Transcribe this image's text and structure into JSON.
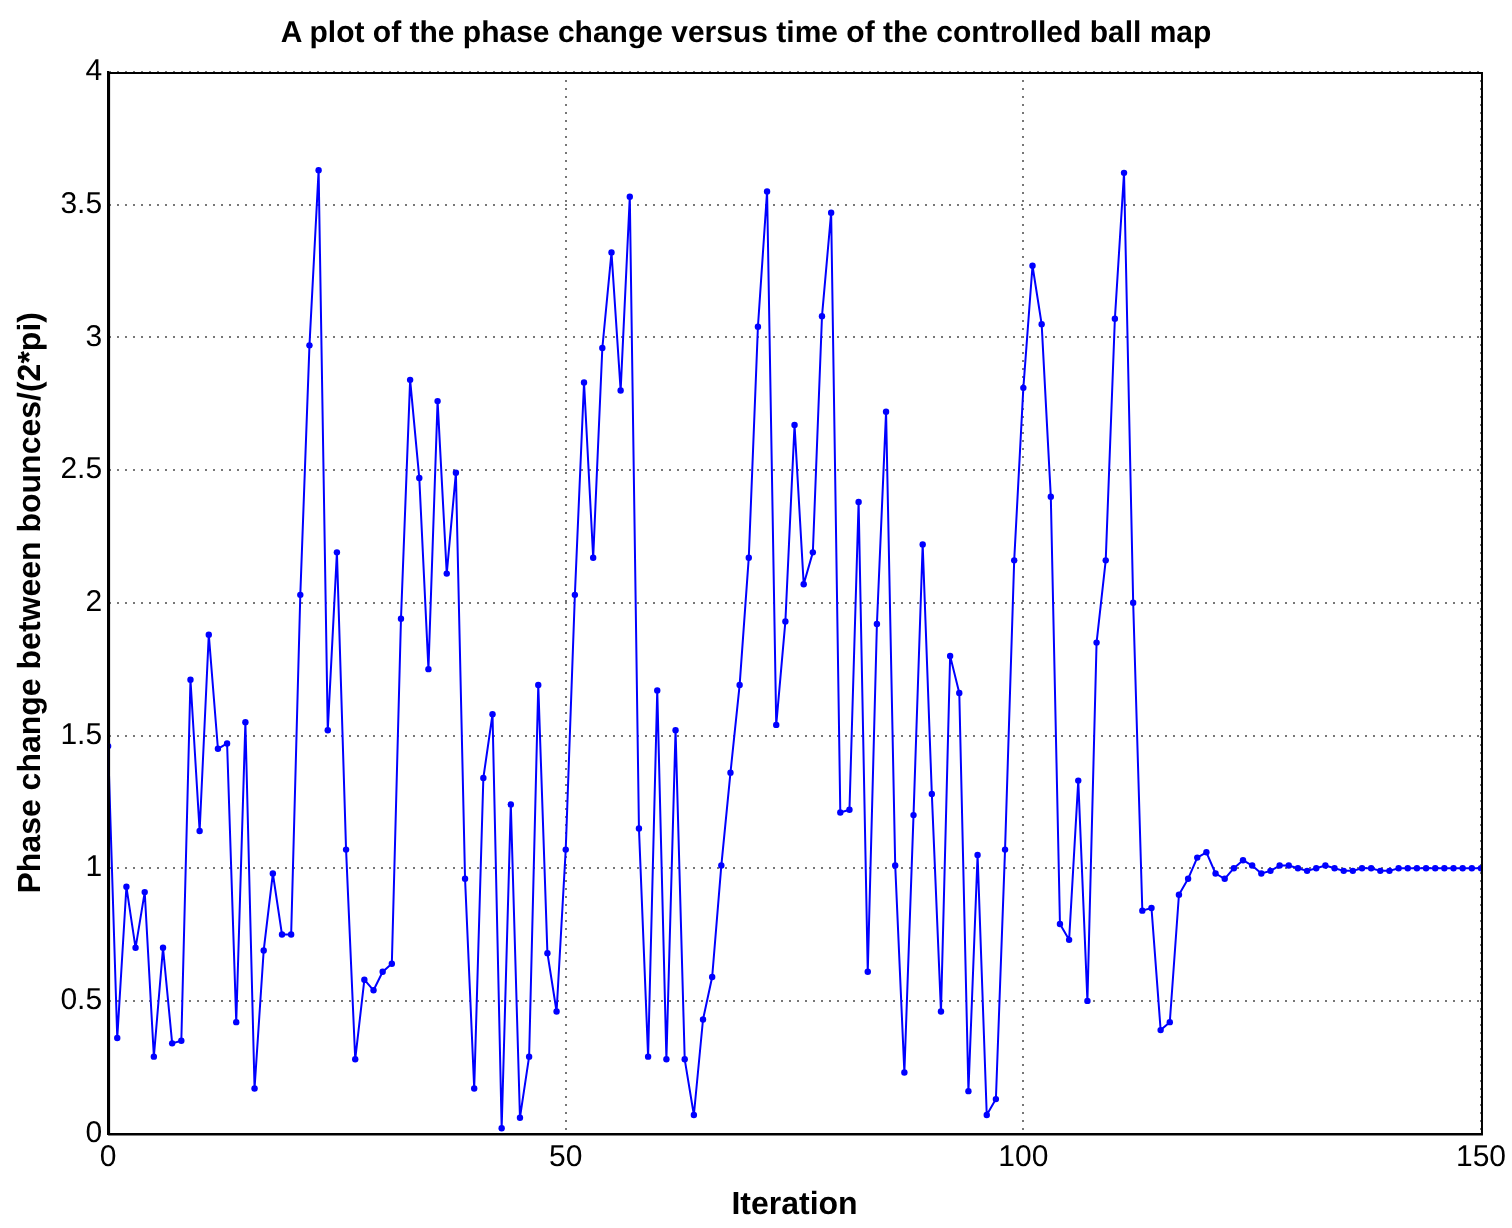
{
  "chart_data": {
    "type": "line",
    "title": "A plot of the phase change versus time of the controlled ball map",
    "xlabel": "Iteration",
    "ylabel": "Phase change between bounces/(2*pi)",
    "x": [
      0,
      1,
      2,
      3,
      4,
      5,
      6,
      7,
      8,
      9,
      10,
      11,
      12,
      13,
      14,
      15,
      16,
      17,
      18,
      19,
      20,
      21,
      22,
      23,
      24,
      25,
      26,
      27,
      28,
      29,
      30,
      31,
      32,
      33,
      34,
      35,
      36,
      37,
      38,
      39,
      40,
      41,
      42,
      43,
      44,
      45,
      46,
      47,
      48,
      49,
      50,
      51,
      52,
      53,
      54,
      55,
      56,
      57,
      58,
      59,
      60,
      61,
      62,
      63,
      64,
      65,
      66,
      67,
      68,
      69,
      70,
      71,
      72,
      73,
      74,
      75,
      76,
      77,
      78,
      79,
      80,
      81,
      82,
      83,
      84,
      85,
      86,
      87,
      88,
      89,
      90,
      91,
      92,
      93,
      94,
      95,
      96,
      97,
      98,
      99,
      100,
      101,
      102,
      103,
      104,
      105,
      106,
      107,
      108,
      109,
      110,
      111,
      112,
      113,
      114,
      115,
      116,
      117,
      118,
      119,
      120,
      121,
      122,
      123,
      124,
      125,
      126,
      127,
      128,
      129,
      130,
      131,
      132,
      133,
      134,
      135,
      136,
      137,
      138,
      139,
      140,
      141,
      142,
      143,
      144,
      145,
      146,
      147,
      148,
      149,
      150
    ],
    "series": [
      {
        "color": "#0000ff",
        "values": [
          1.46,
          0.36,
          0.93,
          0.7,
          0.91,
          0.29,
          0.7,
          0.34,
          0.35,
          1.71,
          1.14,
          1.88,
          1.45,
          1.47,
          0.42,
          1.55,
          0.17,
          0.69,
          0.98,
          0.75,
          0.75,
          2.03,
          2.97,
          3.63,
          1.52,
          2.19,
          1.07,
          0.28,
          0.58,
          0.54,
          0.61,
          0.64,
          1.94,
          2.84,
          2.47,
          1.75,
          2.76,
          2.11,
          2.49,
          0.96,
          0.17,
          1.34,
          1.58,
          0.02,
          1.24,
          0.06,
          0.29,
          1.69,
          0.68,
          0.46,
          1.07,
          2.03,
          2.83,
          2.17,
          2.96,
          3.32,
          2.8,
          3.53,
          1.15,
          0.29,
          1.67,
          0.28,
          1.52,
          0.28,
          0.07,
          0.43,
          0.59,
          1.01,
          1.36,
          1.69,
          2.17,
          3.04,
          3.55,
          1.54,
          1.93,
          2.67,
          2.07,
          2.19,
          3.08,
          3.47,
          1.21,
          1.22,
          2.38,
          0.61,
          1.92,
          2.72,
          1.01,
          0.23,
          1.2,
          2.22,
          1.28,
          0.46,
          1.8,
          1.66,
          0.16,
          1.05,
          0.07,
          0.13,
          1.07,
          2.16,
          2.81,
          3.27,
          3.05,
          2.4,
          0.79,
          0.73,
          1.33,
          0.5,
          1.85,
          2.16,
          3.07,
          3.62,
          2.0,
          0.84,
          0.85,
          0.39,
          0.42,
          0.9,
          0.96,
          1.04,
          1.06,
          0.98,
          0.96,
          1.0,
          1.03,
          1.01,
          0.98,
          0.99,
          1.01,
          1.01,
          1.0,
          0.99,
          1.0,
          1.01,
          1.0,
          0.99,
          0.99,
          1.0,
          1.0,
          0.99,
          0.99,
          1.0,
          1.0,
          1.0,
          1.0,
          1.0,
          1.0,
          1.0,
          1.0,
          1.0,
          1.0
        ]
      }
    ],
    "xlim": [
      0,
      150
    ],
    "xticks": [
      0,
      50,
      100,
      150
    ],
    "ylim": [
      0,
      4
    ],
    "yticks": [
      0,
      0.5,
      1,
      1.5,
      2,
      2.5,
      3,
      3.5,
      4
    ],
    "grid": true,
    "marker": "circle",
    "line_style": "solid",
    "legend": false
  }
}
